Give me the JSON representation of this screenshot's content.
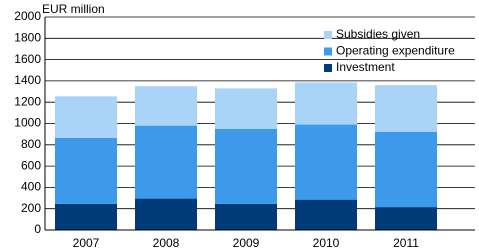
{
  "chart_data": {
    "type": "stacked-bar",
    "ylabel": "EUR million",
    "categories": [
      "2007",
      "2008",
      "2009",
      "2010",
      "2011"
    ],
    "series": [
      {
        "name": "Investment",
        "color": "#003c7a",
        "values": [
          245,
          295,
          245,
          285,
          215
        ]
      },
      {
        "name": "Operating expenditure",
        "color": "#3d9aea",
        "values": [
          620,
          685,
          705,
          705,
          705
        ]
      },
      {
        "name": "Subsidies given",
        "color": "#a9d3f7",
        "values": [
          390,
          370,
          380,
          395,
          440
        ]
      }
    ],
    "ylim": [
      0,
      2000
    ],
    "yticks": [
      0,
      200,
      400,
      600,
      800,
      1000,
      1200,
      1400,
      1600,
      1800,
      2000
    ],
    "grid": true,
    "legend": "top-right"
  }
}
